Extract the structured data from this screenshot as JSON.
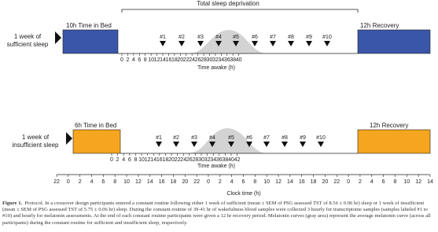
{
  "figure": {
    "deprivation_label": "Total sleep deprivation",
    "top": {
      "condition": "1 week of\nsufficient sleep",
      "bed_label": "10h Time in Bed",
      "recovery_label": "12h Recovery",
      "samples": [
        "#1",
        "#2",
        "#3",
        "#4",
        "#5",
        "#6",
        "#7",
        "#8",
        "#9",
        "#10"
      ],
      "ticks": [
        "0",
        "2",
        "4",
        "6",
        "8",
        "10",
        "12",
        "14",
        "16",
        "18",
        "20",
        "22",
        "24",
        "26",
        "28",
        "30",
        "32",
        "34",
        "36",
        "38",
        "40"
      ],
      "axis_label": "Time awake (h)"
    },
    "bottom": {
      "condition": "1 week of\ninsufficient sleep",
      "bed_label": "6h Time in Bed",
      "recovery_label": "12h Recovery",
      "samples": [
        "#1",
        "#2",
        "#3",
        "#4",
        "#5",
        "#6",
        "#7",
        "#8",
        "#9",
        "#10"
      ],
      "ticks": [
        "0",
        "2",
        "4",
        "6",
        "8",
        "10",
        "12",
        "14",
        "16",
        "18",
        "20",
        "22",
        "24",
        "26",
        "28",
        "30",
        "32",
        "34",
        "36",
        "38",
        "40",
        "42"
      ],
      "axis_label": "Time awake (h)"
    },
    "clock": {
      "ticks": [
        "22",
        "0",
        "2",
        "4",
        "6",
        "8",
        "10",
        "12",
        "14",
        "16",
        "18",
        "20",
        "22",
        "0",
        "2",
        "4",
        "6",
        "8",
        "10",
        "12",
        "14",
        "16",
        "18",
        "20",
        "22",
        "0",
        "2",
        "4",
        "6",
        "8",
        "10",
        "12",
        "14"
      ],
      "axis_label": "Clock time (h)"
    },
    "caption": {
      "label": "Figure 1.",
      "text": "Protocol. In a crossover design participants entered a constant routine following either 1 week of sufficient (mean ± SEM of PSG assessed TST of 8.56 ± 0.06 hr) sleep or 1 week of insufficient (mean ± SEM of PSG assessed TST of 5.75 ± 0.06 hr) sleep. During the constant routine of 39-41 hr of wakefulness blood samples were collected 3 hourly for transcriptome samples (samples labeled #1 to #10) and hourly for melatonin assessments. At the end of each constant routine participants were given a 12 hr recovery period. Melatonin curves (gray area) represent the average melatonin curve (across all participants) during the constant routine for sufficient and insufficient sleep, respectively."
    }
  }
}
